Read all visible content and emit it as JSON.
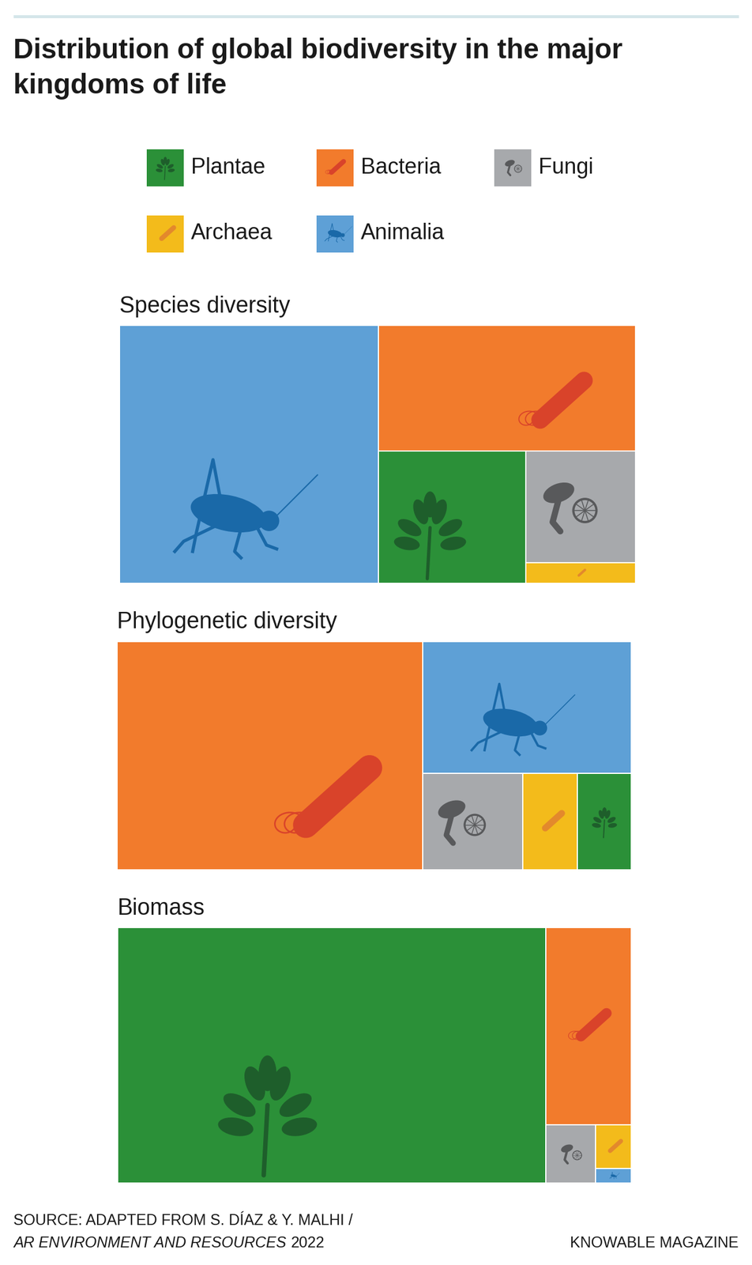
{
  "title": "Distribution of global biodiversity in the major kingdoms of life",
  "kingdoms": [
    {
      "name": "Plantae",
      "color": "#2b9038"
    },
    {
      "name": "Bacteria",
      "color": "#f27b2c"
    },
    {
      "name": "Fungi",
      "color": "#a7a9ac"
    },
    {
      "name": "Archaea",
      "color": "#f3bb1b"
    },
    {
      "name": "Animalia",
      "color": "#5ea0d6"
    }
  ],
  "chart_data": [
    {
      "type": "treemap",
      "title": "Species diversity",
      "categories": [
        "Animalia",
        "Bacteria",
        "Plantae",
        "Fungi",
        "Archaea"
      ],
      "values": [
        50.0,
        24.1,
        14.6,
        9.2,
        1.7
      ]
    },
    {
      "type": "treemap",
      "title": "Phylogenetic diversity",
      "categories": [
        "Bacteria",
        "Animalia",
        "Fungi",
        "Archaea",
        "Plantae"
      ],
      "values": [
        59.2,
        23.3,
        8.2,
        4.5,
        4.4
      ]
    },
    {
      "type": "treemap",
      "title": "Biomass",
      "categories": [
        "Plantae",
        "Bacteria",
        "Fungi",
        "Archaea",
        "Animalia"
      ],
      "values": [
        83.2,
        12.8,
        2.2,
        1.2,
        0.4
      ]
    }
  ],
  "source": {
    "text": "SOURCE: ADAPTED FROM S. DÍAZ & Y. MALHI /",
    "publication": "AR ENVIRONMENT AND RESOURCES",
    "year": "2022"
  },
  "credit": "KNOWABLE MAGAZINE"
}
